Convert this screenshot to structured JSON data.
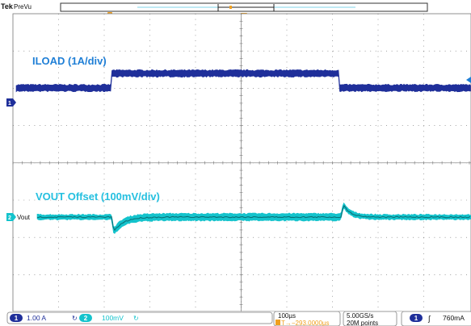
{
  "header": {
    "brand": "Tek",
    "mode": "PreVu",
    "marker_left": "T",
    "marker_top": "T"
  },
  "annotations": {
    "ch1_title": "ILOAD (1A/div)",
    "ch2_title": "VOUT Offset (100mV/div)"
  },
  "markers": {
    "ch1_marker": "1",
    "ch2_marker": "2",
    "ch2_label": "Vout"
  },
  "status_bar": {
    "ch1": {
      "number": "1",
      "scale": "1.00 A",
      "bw": "↻"
    },
    "ch2": {
      "number": "2",
      "scale": "100mV",
      "bw": "↻"
    },
    "timebase": "100µs",
    "trigger_pos": "T→−293.0000µs",
    "sample_rate": "5.00GS/s",
    "record_length": "20M points",
    "trigger": {
      "source": "1",
      "slope": "ʃ",
      "level": "760mA"
    }
  },
  "colors": {
    "ch1": "#1f2f9a",
    "ch2": "#14c3cc",
    "ch2_dark": "#0a7077",
    "accent_orange": "#f0a020",
    "grid": "#6b6b6b",
    "annotation": "#1f7fd6",
    "annotation_cyan": "#25c0e0"
  }
}
